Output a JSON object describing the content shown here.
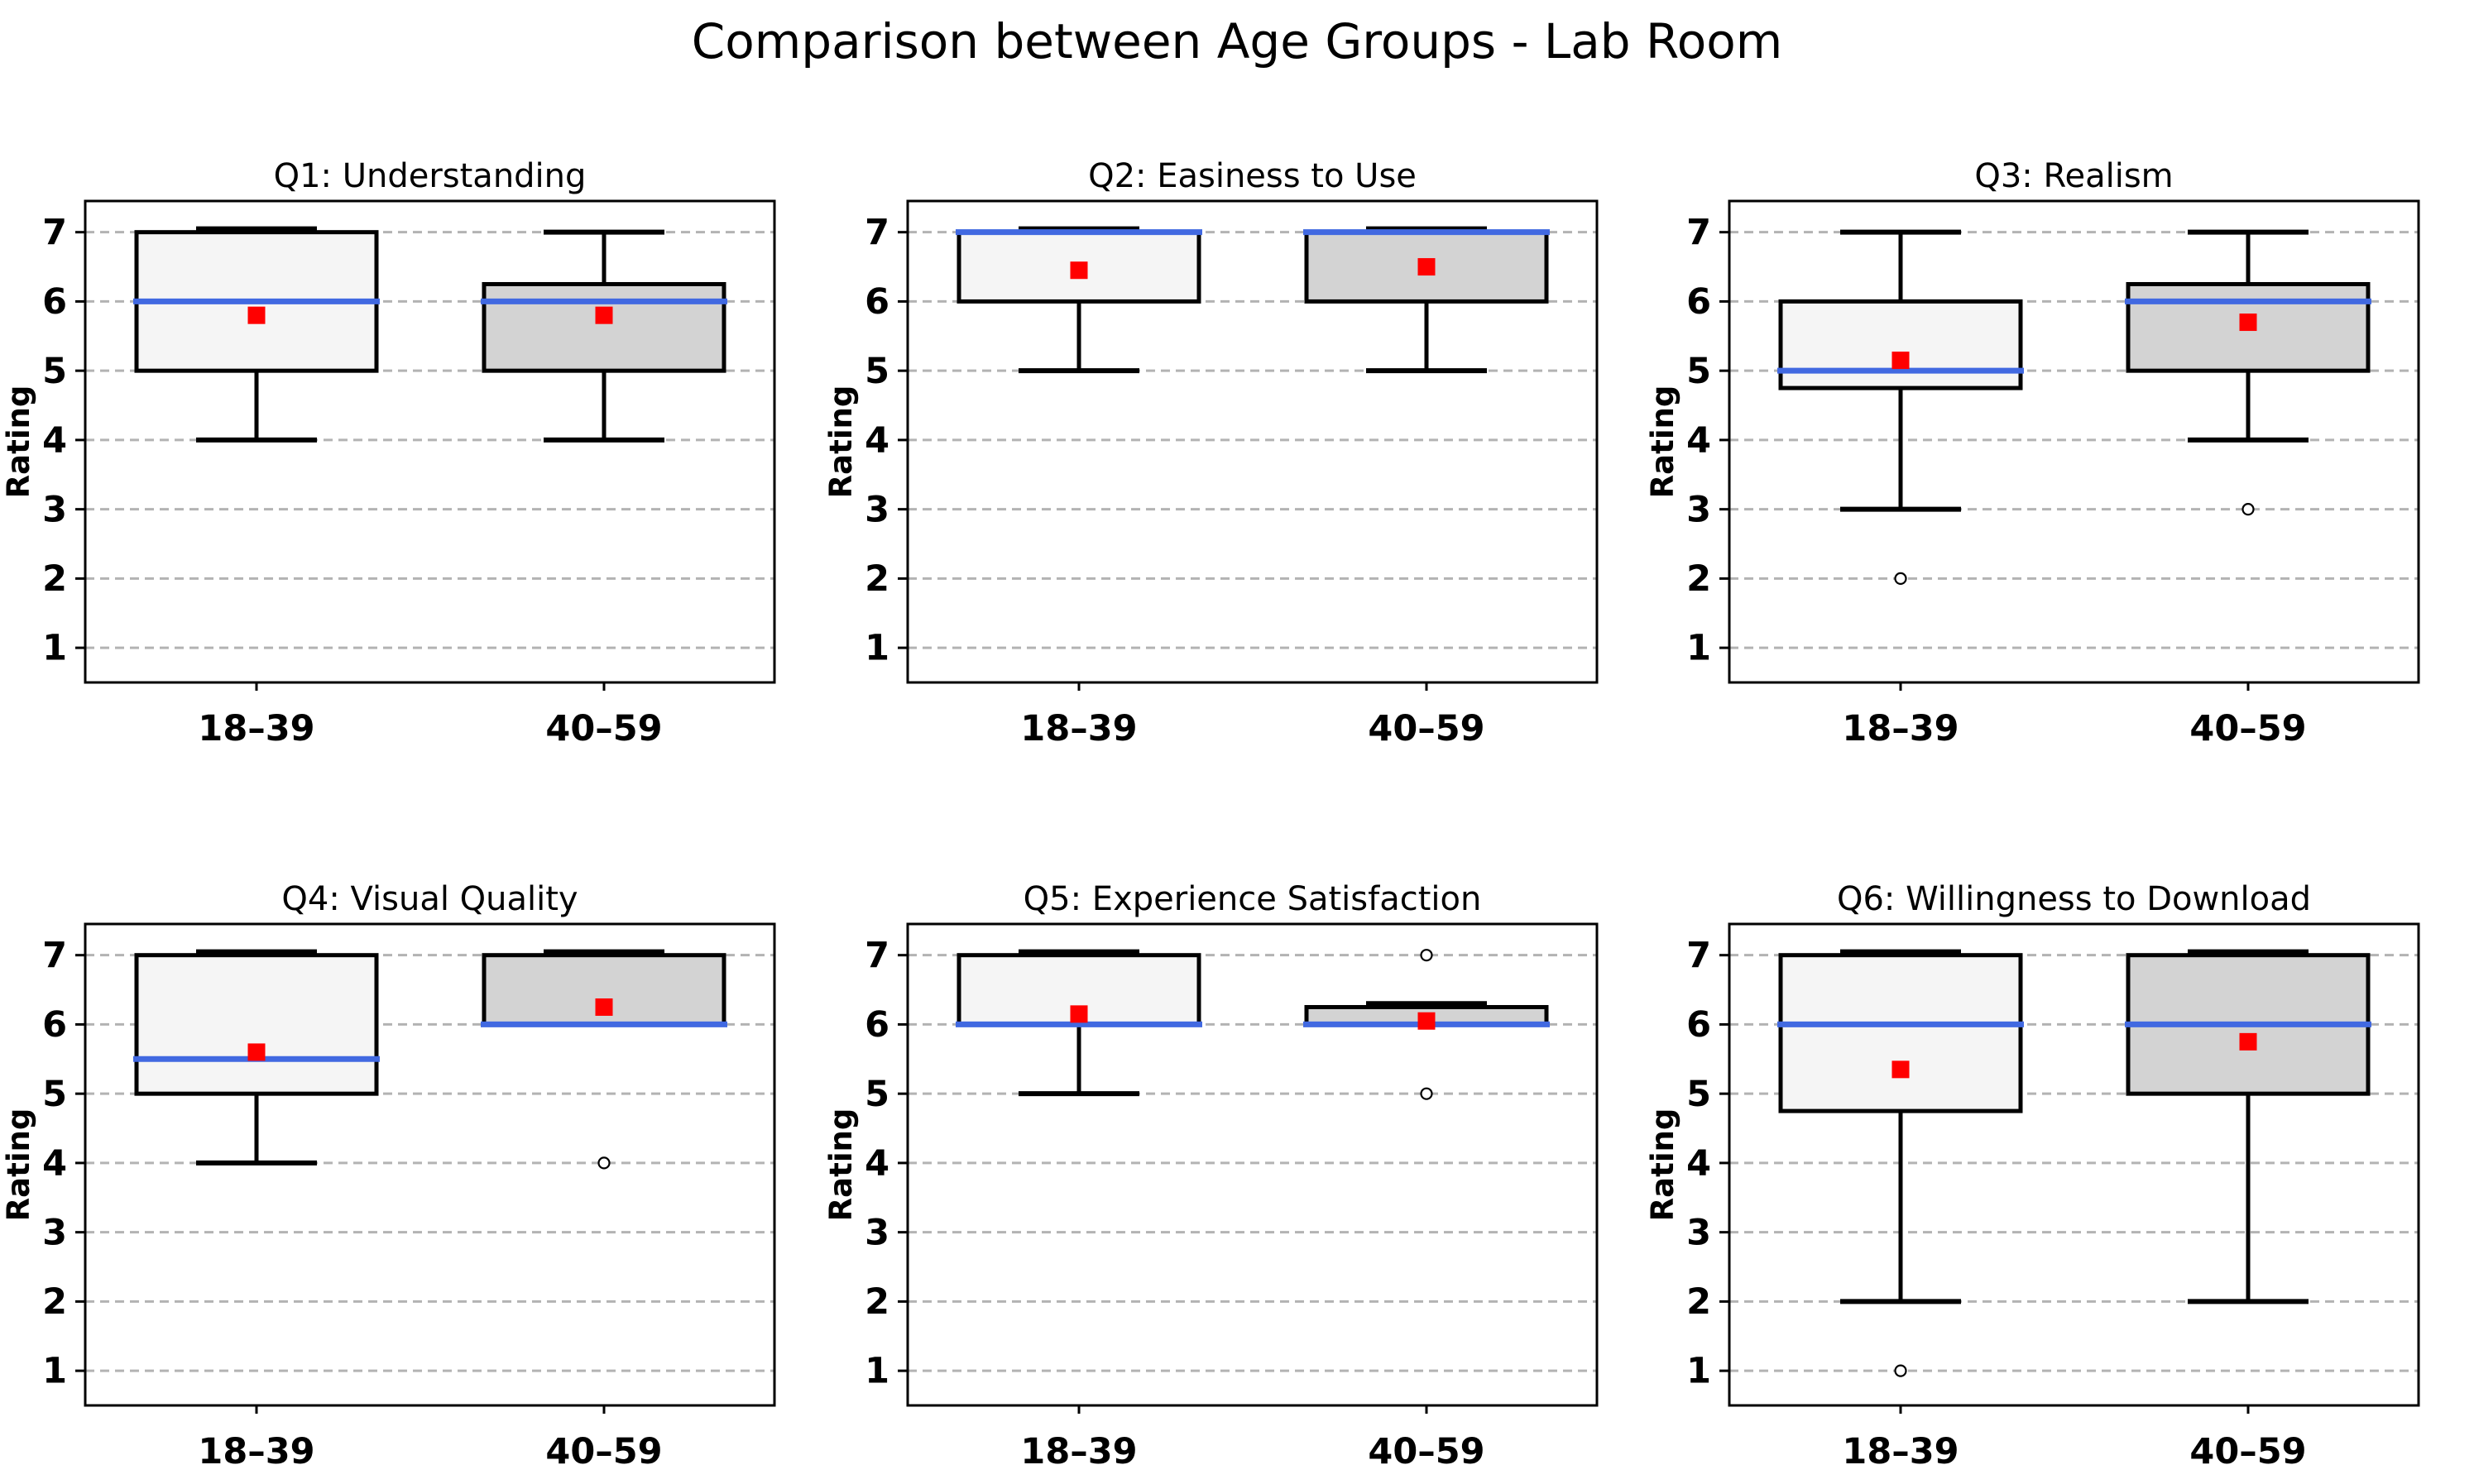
{
  "figure": {
    "title": "Comparison between Age Groups - Lab Room",
    "background": "#ffffff"
  },
  "colors": {
    "box_fill_18_39": "#f5f5f5",
    "box_fill_40_59": "#d3d3d3",
    "box_edge": "#000000",
    "median": "#4169e1",
    "mean": "#ff0000",
    "outlier_edge": "#000000",
    "grid": "#b3b3b3",
    "text": "#000000",
    "background": "#ffffff"
  },
  "axes": {
    "ylabel": "Rating",
    "yticks": [
      1,
      2,
      3,
      4,
      5,
      6,
      7
    ],
    "ylim": [
      0.5,
      7.45
    ],
    "categories": [
      "18–39",
      "40–59"
    ],
    "grid": "horizontal-dashed",
    "legend": "none"
  },
  "chart_data": [
    {
      "type": "box",
      "title": "Q1: Understanding",
      "ylabel": "Rating",
      "ylim": [
        0.5,
        7.45
      ],
      "categories": [
        "18–39",
        "40–59"
      ],
      "series": [
        {
          "category": "18–39",
          "q1": 5,
          "median": 6,
          "q3": 7,
          "whisker_low": 4,
          "whisker_high": 7,
          "mean": 5.8,
          "outliers": []
        },
        {
          "category": "40–59",
          "q1": 5,
          "median": 6,
          "q3": 6.25,
          "whisker_low": 4,
          "whisker_high": 7,
          "mean": 5.8,
          "outliers": []
        }
      ]
    },
    {
      "type": "box",
      "title": "Q2: Easiness to Use",
      "ylabel": "Rating",
      "ylim": [
        0.5,
        7.45
      ],
      "categories": [
        "18–39",
        "40–59"
      ],
      "series": [
        {
          "category": "18–39",
          "q1": 6,
          "median": 7,
          "q3": 7,
          "whisker_low": 5,
          "whisker_high": 7,
          "mean": 6.45,
          "outliers": []
        },
        {
          "category": "40–59",
          "q1": 6,
          "median": 7,
          "q3": 7,
          "whisker_low": 5,
          "whisker_high": 7,
          "mean": 6.5,
          "outliers": []
        }
      ]
    },
    {
      "type": "box",
      "title": "Q3: Realism",
      "ylabel": "Rating",
      "ylim": [
        0.5,
        7.45
      ],
      "categories": [
        "18–39",
        "40–59"
      ],
      "series": [
        {
          "category": "18–39",
          "q1": 4.75,
          "median": 5,
          "q3": 6,
          "whisker_low": 3,
          "whisker_high": 7,
          "mean": 5.15,
          "outliers": [
            2
          ]
        },
        {
          "category": "40–59",
          "q1": 5,
          "median": 6,
          "q3": 6.25,
          "whisker_low": 4,
          "whisker_high": 7,
          "mean": 5.7,
          "outliers": [
            3
          ]
        }
      ]
    },
    {
      "type": "box",
      "title": "Q4: Visual Quality",
      "ylabel": "Rating",
      "ylim": [
        0.5,
        7.45
      ],
      "categories": [
        "18–39",
        "40–59"
      ],
      "series": [
        {
          "category": "18–39",
          "q1": 5,
          "median": 5.5,
          "q3": 7,
          "whisker_low": 4,
          "whisker_high": 7,
          "mean": 5.6,
          "outliers": []
        },
        {
          "category": "40–59",
          "q1": 6,
          "median": 6,
          "q3": 7,
          "whisker_low": 6,
          "whisker_high": 7,
          "mean": 6.25,
          "outliers": [
            4
          ]
        }
      ]
    },
    {
      "type": "box",
      "title": "Q5: Experience Satisfaction",
      "ylabel": "Rating",
      "ylim": [
        0.5,
        7.45
      ],
      "categories": [
        "18–39",
        "40–59"
      ],
      "series": [
        {
          "category": "18–39",
          "q1": 6,
          "median": 6,
          "q3": 7,
          "whisker_low": 5,
          "whisker_high": 7,
          "mean": 6.15,
          "outliers": []
        },
        {
          "category": "40–59",
          "q1": 6,
          "median": 6,
          "q3": 6.25,
          "whisker_low": 6,
          "whisker_high": 6.3,
          "mean": 6.05,
          "outliers": [
            7,
            5
          ]
        }
      ]
    },
    {
      "type": "box",
      "title": "Q6: Willingness to Download",
      "ylabel": "Rating",
      "ylim": [
        0.5,
        7.45
      ],
      "categories": [
        "18–39",
        "40–59"
      ],
      "series": [
        {
          "category": "18–39",
          "q1": 4.75,
          "median": 6,
          "q3": 7,
          "whisker_low": 2,
          "whisker_high": 7,
          "mean": 5.35,
          "outliers": [
            1
          ]
        },
        {
          "category": "40–59",
          "q1": 5,
          "median": 6,
          "q3": 7,
          "whisker_low": 2,
          "whisker_high": 7,
          "mean": 5.75,
          "outliers": []
        }
      ]
    }
  ]
}
